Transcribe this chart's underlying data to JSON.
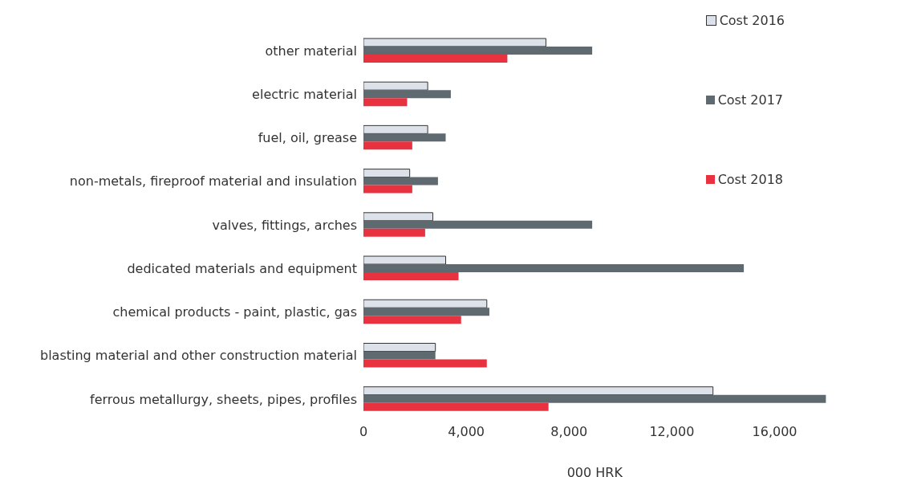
{
  "chart_data": {
    "type": "bar",
    "orientation": "horizontal",
    "xlabel": "000 HRK",
    "categories": [
      "other material",
      "electric material",
      "fuel, oil, grease",
      "non-metals, fireproof material and insulation",
      "valves, fittings, arches",
      "dedicated materials and equipment",
      "chemical products - paint, plastic, gas",
      "blasting material and other construction material",
      "ferrous metallurgy, sheets, pipes, profiles"
    ],
    "series": [
      {
        "name": "Cost 2016",
        "color": "#dde1ea",
        "values": [
          7100,
          2500,
          2500,
          1800,
          2700,
          3200,
          4800,
          2800,
          13600
        ]
      },
      {
        "name": "Cost 2017",
        "color": "#5f6a70",
        "values": [
          8900,
          3400,
          3200,
          2900,
          8900,
          14800,
          4900,
          2800,
          18000
        ]
      },
      {
        "name": "Cost 2018",
        "color": "#e8323f",
        "values": [
          5600,
          1700,
          1900,
          1900,
          2400,
          3700,
          3800,
          4800,
          7200
        ]
      }
    ],
    "xlim": [
      0,
      18000
    ],
    "xticks": [
      {
        "value": 0,
        "label": "0"
      },
      {
        "value": 4000,
        "label": "4,000"
      },
      {
        "value": 8000,
        "label": "8,000"
      },
      {
        "value": 12000,
        "label": "12,000"
      },
      {
        "value": 16000,
        "label": "16,000"
      }
    ],
    "grid": false,
    "legend": "top right"
  }
}
